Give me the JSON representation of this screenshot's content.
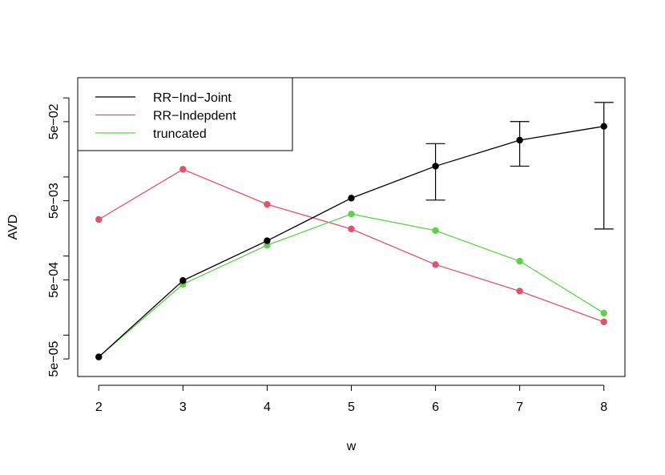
{
  "chart_data": {
    "type": "line",
    "title": "",
    "xlabel": "w",
    "ylabel": "AVD",
    "y_scale": "log",
    "x": [
      2,
      3,
      4,
      5,
      6,
      7,
      8
    ],
    "x_tick_labels": [
      "2",
      "3",
      "4",
      "5",
      "6",
      "7",
      "8"
    ],
    "y_ticks": [
      5e-05,
      0.0001,
      0.0005,
      0.001,
      0.005,
      0.01,
      0.05,
      0.1
    ],
    "y_tick_labels": [
      "5e−05",
      "",
      "5e−04",
      "",
      "5e−03",
      "",
      "5e−02",
      ""
    ],
    "ylim": [
      3e-05,
      0.18
    ],
    "xlim": [
      1.75,
      8.25
    ],
    "grid": false,
    "legend_position": "top-left",
    "series": [
      {
        "name": "RR−Ind−Joint",
        "color": "#000000",
        "values": [
          5.3e-05,
          0.00049,
          0.00156,
          0.0054,
          0.0137,
          0.0292,
          0.0437
        ],
        "error_bars": [
          null,
          null,
          null,
          null,
          [
            0.0051,
            0.0264
          ],
          [
            0.0137,
            0.0502
          ],
          [
            0.0022,
            0.0876
          ]
        ]
      },
      {
        "name": "RR−Indepdent",
        "color": "#DF536B",
        "values": [
          0.0029,
          0.0125,
          0.0045,
          0.0022,
          0.00078,
          0.00036,
          0.000147
        ]
      },
      {
        "name": "truncated",
        "color": "#61D04F",
        "values": [
          5.3e-05,
          0.00044,
          0.00137,
          0.0034,
          0.0021,
          0.00086,
          0.00019
        ]
      }
    ]
  }
}
